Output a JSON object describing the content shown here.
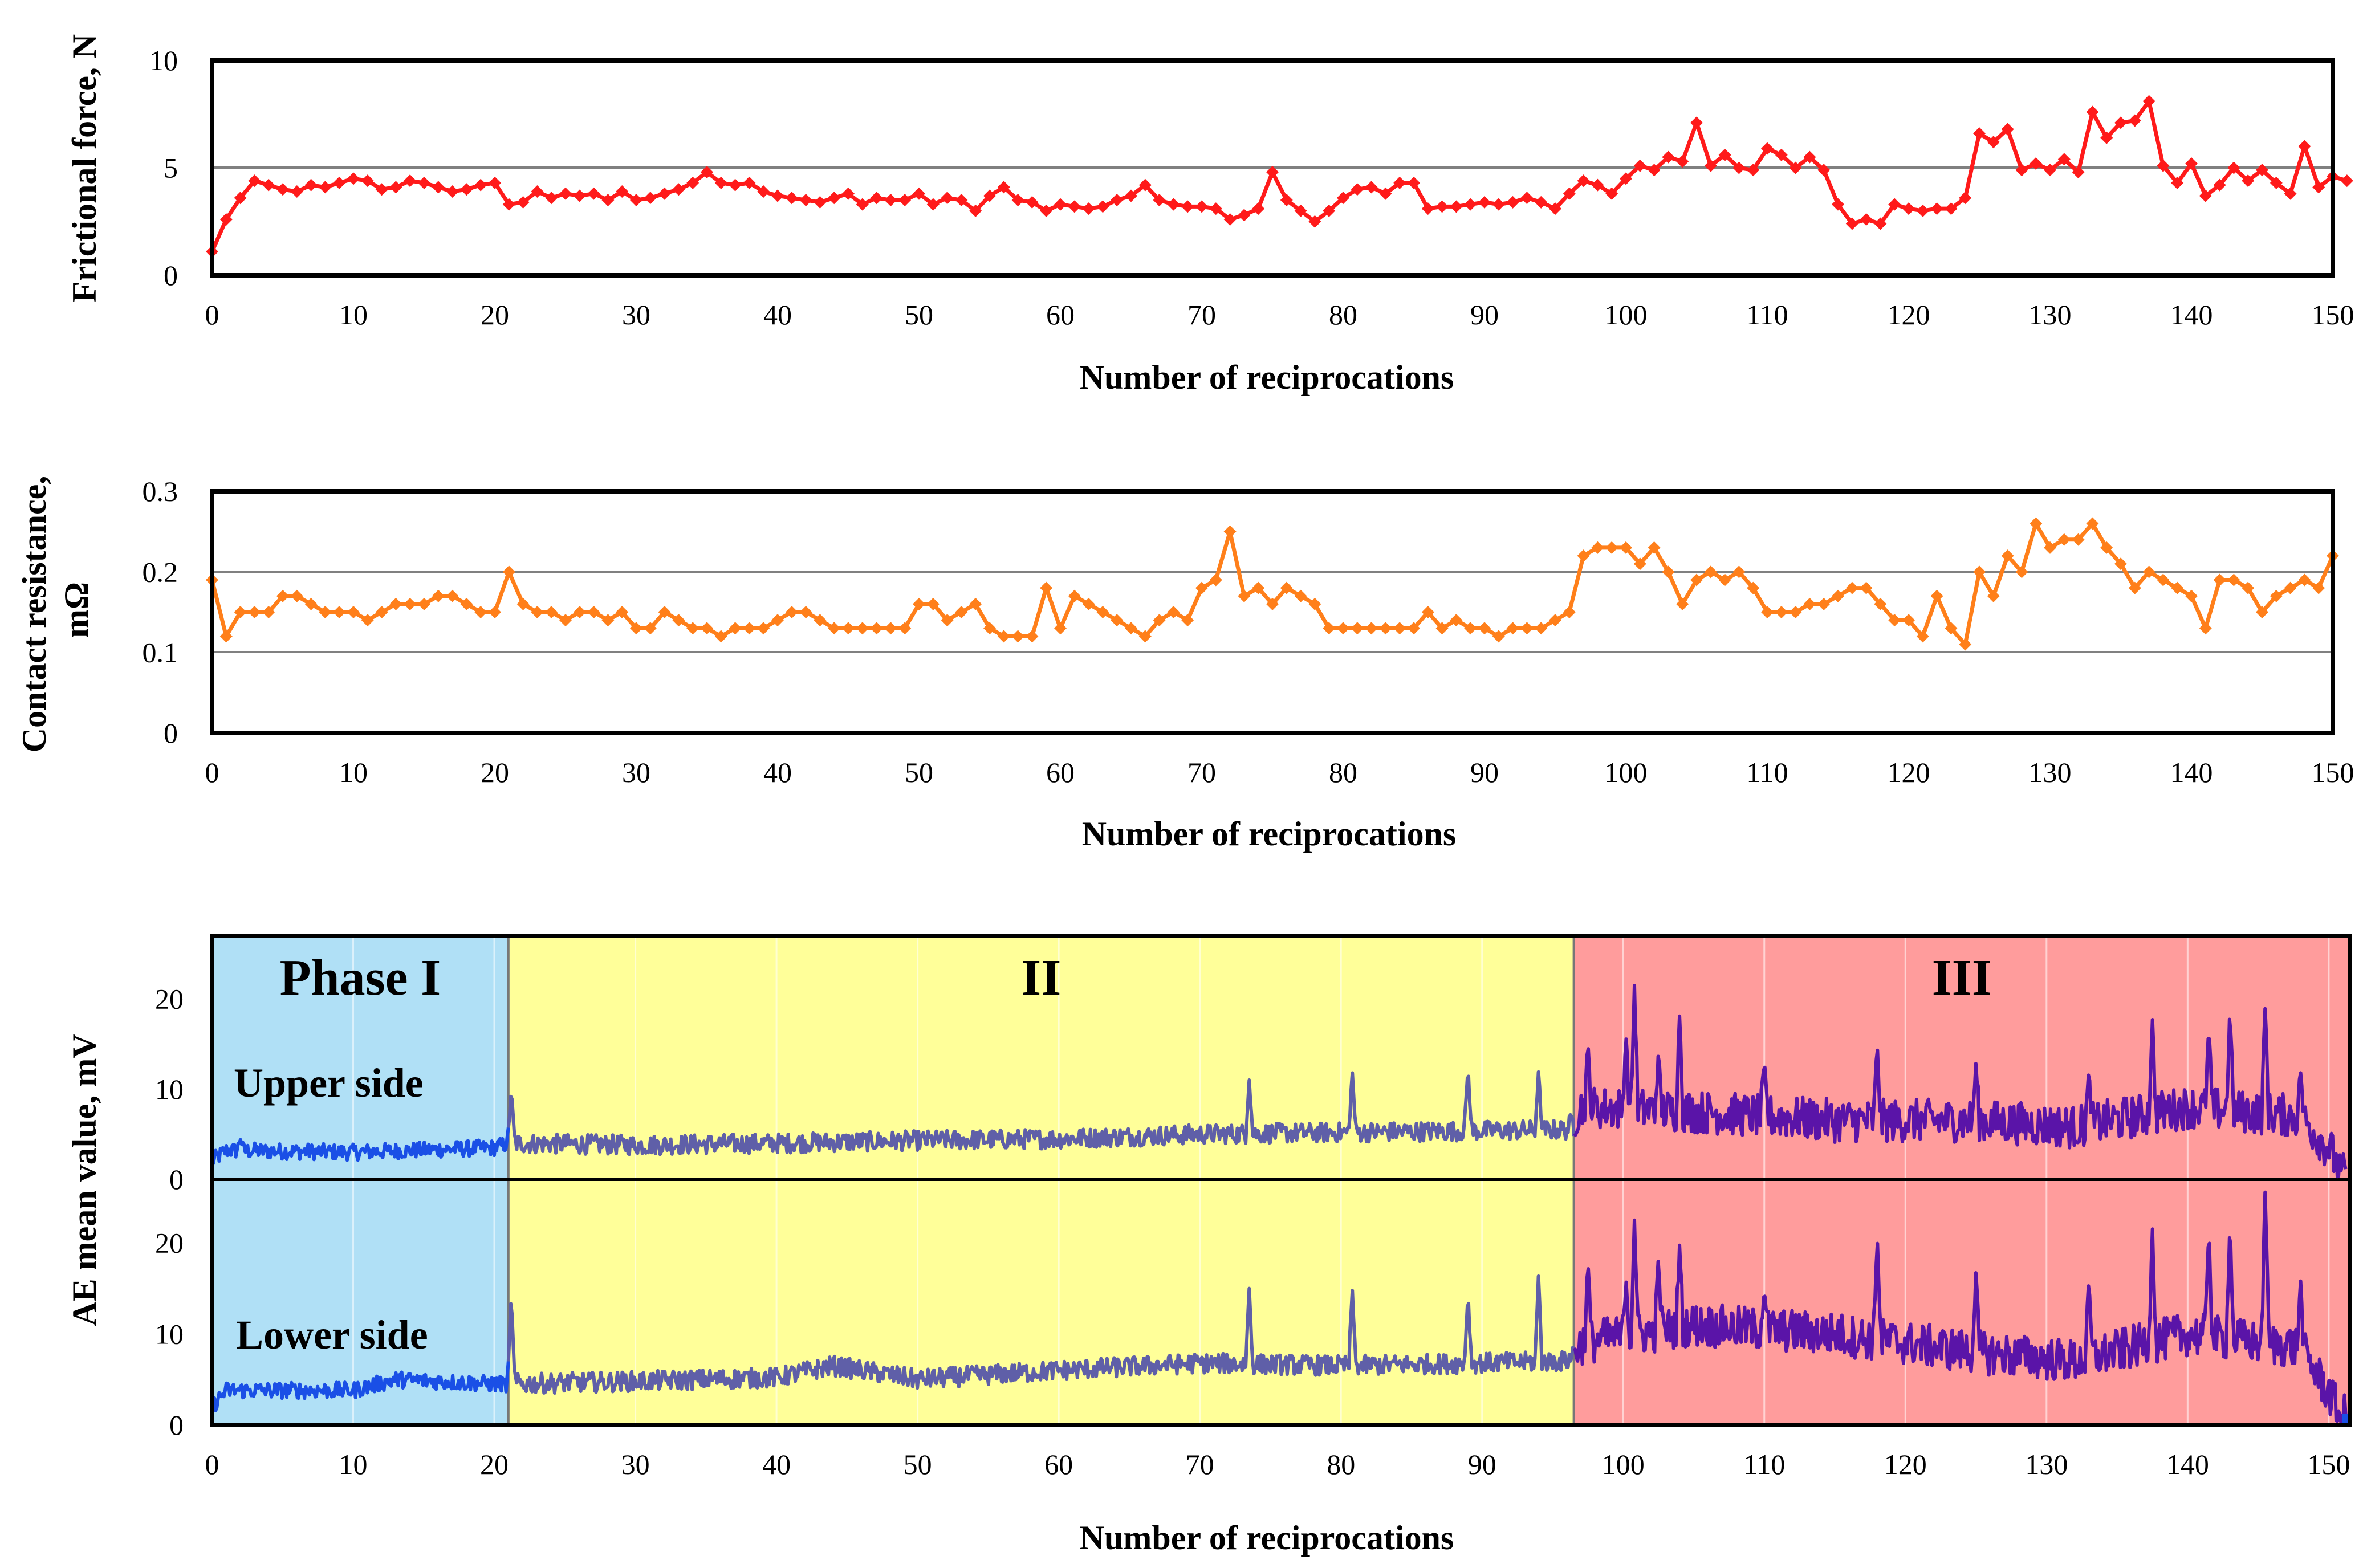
{
  "chart_data": [
    {
      "type": "line",
      "ylabel": "Frictional force, N",
      "xlabel": "Number of reciprocations",
      "xlim": [
        0,
        150
      ],
      "ylim": [
        0,
        10
      ],
      "xticks": [
        "0",
        "10",
        "20",
        "30",
        "40",
        "50",
        "60",
        "70",
        "80",
        "90",
        "100",
        "110",
        "120",
        "130",
        "140",
        "150"
      ],
      "yticks": [
        "0",
        "5",
        "10"
      ],
      "gridlines_y": [
        5
      ],
      "color": "#ff1a1a",
      "marker": "diamond",
      "x_start": 0,
      "x_step": 1,
      "values": [
        1.1,
        2.6,
        3.6,
        4.4,
        4.2,
        4.0,
        3.9,
        4.2,
        4.1,
        4.3,
        4.5,
        4.4,
        4.0,
        4.1,
        4.4,
        4.3,
        4.1,
        3.9,
        4.0,
        4.2,
        4.3,
        3.3,
        3.4,
        3.9,
        3.6,
        3.8,
        3.7,
        3.8,
        3.5,
        3.9,
        3.5,
        3.6,
        3.8,
        4.0,
        4.3,
        4.8,
        4.3,
        4.2,
        4.3,
        3.9,
        3.7,
        3.6,
        3.5,
        3.4,
        3.6,
        3.8,
        3.3,
        3.6,
        3.5,
        3.5,
        3.8,
        3.3,
        3.6,
        3.5,
        3.0,
        3.7,
        4.1,
        3.5,
        3.4,
        3.0,
        3.3,
        3.2,
        3.1,
        3.2,
        3.5,
        3.7,
        4.2,
        3.5,
        3.3,
        3.2,
        3.2,
        3.1,
        2.6,
        2.8,
        3.1,
        4.8,
        3.5,
        3.0,
        2.5,
        3.0,
        3.6,
        4.0,
        4.1,
        3.8,
        4.3,
        4.3,
        3.1,
        3.2,
        3.2,
        3.3,
        3.4,
        3.3,
        3.4,
        3.6,
        3.4,
        3.1,
        3.8,
        4.4,
        4.2,
        3.8,
        4.5,
        5.1,
        4.9,
        5.5,
        5.3,
        7.1,
        5.1,
        5.6,
        5.0,
        4.9,
        5.9,
        5.6,
        5.0,
        5.5,
        4.9,
        3.3,
        2.4,
        2.6,
        2.4,
        3.3,
        3.1,
        3.0,
        3.1,
        3.1,
        3.6,
        6.6,
        6.2,
        6.8,
        4.9,
        5.2,
        4.9,
        5.4,
        4.8,
        7.6,
        6.4,
        7.1,
        7.2,
        8.1,
        5.1,
        4.3,
        5.2,
        3.7,
        4.2,
        5.0,
        4.4,
        4.9,
        4.3,
        3.8,
        6.0,
        4.1,
        4.6,
        4.4
      ]
    },
    {
      "type": "line",
      "ylabel": "Contact resistance, mΩ",
      "xlabel": "Number of reciprocations",
      "xlim": [
        0,
        150
      ],
      "ylim": [
        0,
        0.3
      ],
      "xticks": [
        "0",
        "10",
        "20",
        "30",
        "40",
        "50",
        "60",
        "70",
        "80",
        "90",
        "100",
        "110",
        "120",
        "130",
        "140",
        "150"
      ],
      "yticks": [
        "0",
        "0.1",
        "0.2",
        "0.3"
      ],
      "gridlines_y": [
        0.1,
        0.2
      ],
      "color": "#ff7f1a",
      "marker": "diamond",
      "x_start": 0,
      "x_step": 1,
      "values": [
        0.19,
        0.12,
        0.15,
        0.15,
        0.15,
        0.17,
        0.17,
        0.16,
        0.15,
        0.15,
        0.15,
        0.14,
        0.15,
        0.16,
        0.16,
        0.16,
        0.17,
        0.17,
        0.16,
        0.15,
        0.15,
        0.2,
        0.16,
        0.15,
        0.15,
        0.14,
        0.15,
        0.15,
        0.14,
        0.15,
        0.13,
        0.13,
        0.15,
        0.14,
        0.13,
        0.13,
        0.12,
        0.13,
        0.13,
        0.13,
        0.14,
        0.15,
        0.15,
        0.14,
        0.13,
        0.13,
        0.13,
        0.13,
        0.13,
        0.13,
        0.16,
        0.16,
        0.14,
        0.15,
        0.16,
        0.13,
        0.12,
        0.12,
        0.12,
        0.18,
        0.13,
        0.17,
        0.16,
        0.15,
        0.14,
        0.13,
        0.12,
        0.14,
        0.15,
        0.14,
        0.18,
        0.19,
        0.25,
        0.17,
        0.18,
        0.16,
        0.18,
        0.17,
        0.16,
        0.13,
        0.13,
        0.13,
        0.13,
        0.13,
        0.13,
        0.13,
        0.15,
        0.13,
        0.14,
        0.13,
        0.13,
        0.12,
        0.13,
        0.13,
        0.13,
        0.14,
        0.15,
        0.22,
        0.23,
        0.23,
        0.23,
        0.21,
        0.23,
        0.2,
        0.16,
        0.19,
        0.2,
        0.19,
        0.2,
        0.18,
        0.15,
        0.15,
        0.15,
        0.16,
        0.16,
        0.17,
        0.18,
        0.18,
        0.16,
        0.14,
        0.14,
        0.12,
        0.17,
        0.13,
        0.11,
        0.2,
        0.17,
        0.22,
        0.2,
        0.26,
        0.23,
        0.24,
        0.24,
        0.26,
        0.23,
        0.21,
        0.18,
        0.2,
        0.19,
        0.18,
        0.17,
        0.13,
        0.19,
        0.19,
        0.18,
        0.15,
        0.17,
        0.18,
        0.19,
        0.18,
        0.22
      ]
    },
    {
      "type": "line",
      "ylabel": "AE mean value, mV",
      "xlabel": "Number of reciprocations",
      "xlim": [
        0,
        151.5
      ],
      "xticks": [
        "0",
        "10",
        "20",
        "30",
        "40",
        "50",
        "60",
        "70",
        "80",
        "90",
        "100",
        "110",
        "120",
        "130",
        "140",
        "150"
      ],
      "phases": [
        {
          "label": "Phase I",
          "x_from": 0,
          "x_to": 21,
          "color": "#b0e0f6"
        },
        {
          "label": "II",
          "x_from": 21,
          "x_to": 96.5,
          "color": "#ffff99"
        },
        {
          "label": "III",
          "x_from": 96.5,
          "x_to": 151.5,
          "color": "#ff9c9c"
        }
      ],
      "panels": [
        {
          "label": "Upper side",
          "ylim": [
            0,
            27
          ],
          "yticks": [
            "0",
            "10",
            "20"
          ],
          "baseline_levels": [
            [
              0,
              2
            ],
            [
              1,
              3.2
            ],
            [
              10,
              3
            ],
            [
              20,
              3.5
            ],
            [
              21,
              4
            ],
            [
              30,
              3.8
            ],
            [
              40,
              4
            ],
            [
              50,
              4.3
            ],
            [
              60,
              4.5
            ],
            [
              70,
              5
            ],
            [
              80,
              5.2
            ],
            [
              96,
              5.5
            ],
            [
              97,
              8
            ],
            [
              105,
              7.5
            ],
            [
              115,
              6.5
            ],
            [
              125,
              6.5
            ],
            [
              132,
              5.8
            ],
            [
              140,
              8
            ],
            [
              148,
              7
            ],
            [
              150.2,
              3
            ],
            [
              150.8,
              0.5
            ]
          ],
          "spikes": [
            [
              2,
              4.5
            ],
            [
              21.2,
              10
            ],
            [
              73.5,
              11
            ],
            [
              80.8,
              12
            ],
            [
              89,
              12.5
            ],
            [
              94,
              12
            ],
            [
              97.5,
              15
            ],
            [
              100.2,
              16
            ],
            [
              100.8,
              21.5
            ],
            [
              102.5,
              14
            ],
            [
              104,
              18.5
            ],
            [
              110,
              13
            ],
            [
              118,
              15
            ],
            [
              125,
              13
            ],
            [
              133,
              12
            ],
            [
              137.5,
              18
            ],
            [
              141.5,
              17
            ],
            [
              143,
              19
            ],
            [
              145.5,
              19.5
            ],
            [
              148,
              12
            ]
          ]
        },
        {
          "label": "Lower side",
          "ylim": [
            0,
            27
          ],
          "yticks": [
            "0",
            "10",
            "20"
          ],
          "baseline_levels": [
            [
              0,
              2
            ],
            [
              1,
              3.8
            ],
            [
              10,
              3.8
            ],
            [
              13,
              5
            ],
            [
              20,
              4.5
            ],
            [
              21,
              4.5
            ],
            [
              30,
              4.8
            ],
            [
              40,
              5.2
            ],
            [
              44,
              6.5
            ],
            [
              50,
              5
            ],
            [
              60,
              6
            ],
            [
              70,
              6.8
            ],
            [
              80,
              6.5
            ],
            [
              96,
              7
            ],
            [
              97,
              9
            ],
            [
              105,
              11
            ],
            [
              115,
              10
            ],
            [
              125,
              8
            ],
            [
              132,
              7
            ],
            [
              140,
              10
            ],
            [
              148,
              8.5
            ],
            [
              150.2,
              3
            ],
            [
              150.8,
              1
            ]
          ],
          "spikes": [
            [
              21.2,
              14.5
            ],
            [
              73.5,
              15
            ],
            [
              80.8,
              15
            ],
            [
              89,
              14.5
            ],
            [
              94,
              16.5
            ],
            [
              97.5,
              18
            ],
            [
              100.2,
              16
            ],
            [
              100.8,
              22.5
            ],
            [
              102.5,
              18.5
            ],
            [
              104,
              20
            ],
            [
              110,
              15
            ],
            [
              118,
              21
            ],
            [
              125,
              17
            ],
            [
              133,
              16
            ],
            [
              137.5,
              22
            ],
            [
              141.5,
              22
            ],
            [
              143,
              22.5
            ],
            [
              145.5,
              26.5
            ],
            [
              148,
              16
            ]
          ]
        }
      ],
      "series": [
        {
          "name": "Upper side",
          "color_phase1": "#1a4fe6",
          "color_phase2": "#5f5fa8",
          "color_phase3": "#5a14a8"
        },
        {
          "name": "Lower side",
          "color_phase1": "#1a4fe6",
          "color_phase2": "#5f5fa8",
          "color_phase3": "#5a14a8"
        }
      ]
    }
  ]
}
